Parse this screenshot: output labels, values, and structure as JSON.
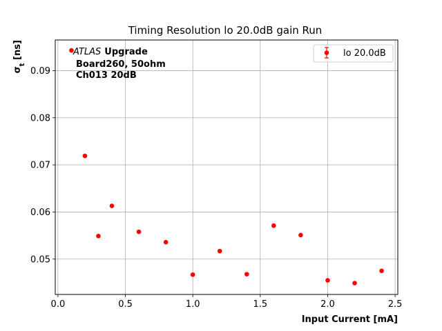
{
  "chart_data": {
    "type": "scatter",
    "title": "Timing Resolution lo 20.0dB gain Run",
    "xlabel": "Input Current [mA]",
    "ylabel": "σ",
    "ylabel_subscript": "t",
    "ylabel_unit": " [ns]",
    "xlim": [
      -0.02,
      2.52
    ],
    "ylim": [
      0.0425,
      0.0965
    ],
    "xticks": [
      0.0,
      0.5,
      1.0,
      1.5,
      2.0,
      2.5
    ],
    "xtick_labels": [
      "0.0",
      "0.5",
      "1.0",
      "1.5",
      "2.0",
      "2.5"
    ],
    "yticks": [
      0.05,
      0.06,
      0.07,
      0.08,
      0.09
    ],
    "ytick_labels": [
      "0.05",
      "0.06",
      "0.07",
      "0.08",
      "0.09"
    ],
    "grid": true,
    "legend_position": "top-right",
    "series": [
      {
        "name": "lo 20.0dB",
        "color": "#ff0000",
        "marker": "circle",
        "x": [
          0.1,
          0.2,
          0.3,
          0.4,
          0.6,
          0.8,
          1.0,
          1.2,
          1.4,
          1.6,
          1.8,
          2.0,
          2.2,
          2.4
        ],
        "y": [
          0.0943,
          0.0719,
          0.0549,
          0.0613,
          0.0558,
          0.0536,
          0.0467,
          0.0517,
          0.0468,
          0.0571,
          0.0551,
          0.0455,
          0.0449,
          0.0475
        ]
      }
    ],
    "annotation": {
      "atlas": "ATLAS",
      "upgrade": "Upgrade",
      "line2": "Board260, 50ohm",
      "line3": "Ch013 20dB"
    }
  }
}
